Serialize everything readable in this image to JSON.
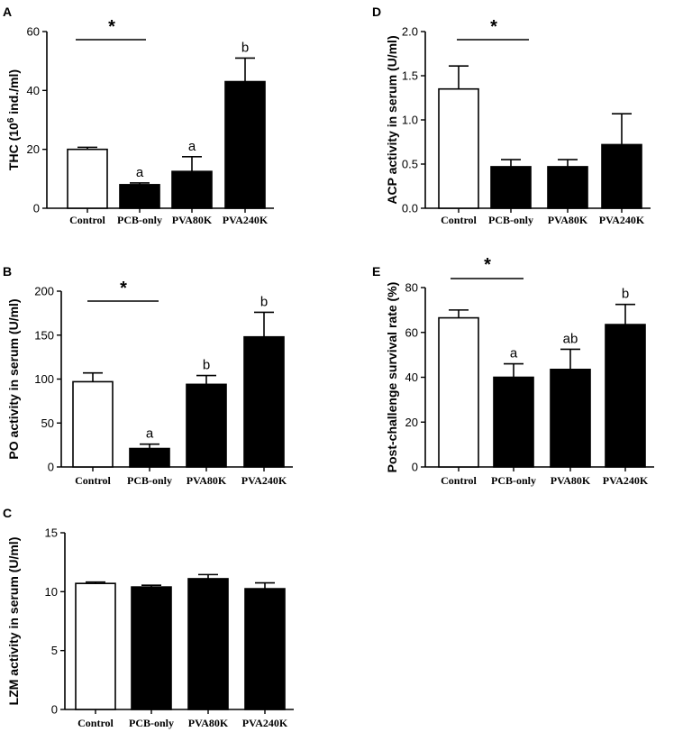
{
  "chart_data": [
    {
      "panel": "A",
      "type": "bar",
      "categories": [
        "Control",
        "PCB-only",
        "PVA80K",
        "PVA240K"
      ],
      "values": [
        20,
        8,
        12.5,
        43
      ],
      "errors": [
        0.7,
        0.6,
        5,
        8
      ],
      "fills": [
        "#ffffff",
        "#000000",
        "#000000",
        "#000000"
      ],
      "sig_labels": [
        "",
        "a",
        "a",
        "b"
      ],
      "ylabel_main": "THC (10",
      "ylabel_sup": "6",
      "ylabel_tail": " ind./ml)",
      "ylim": [
        0,
        60
      ],
      "yticks": [
        "0",
        "20",
        "40",
        "60"
      ],
      "ytick_values": [
        0,
        20,
        40,
        60
      ],
      "star": "*"
    },
    {
      "panel": "B",
      "type": "bar",
      "categories": [
        "Control",
        "PCB-only",
        "PVA80K",
        "PVA240K"
      ],
      "values": [
        97,
        21,
        94,
        148
      ],
      "errors": [
        10,
        5,
        10,
        28
      ],
      "fills": [
        "#ffffff",
        "#000000",
        "#000000",
        "#000000"
      ],
      "sig_labels": [
        "",
        "a",
        "b",
        "b"
      ],
      "ylabel": "PO activity in serum (U/ml)",
      "ylim": [
        0,
        200
      ],
      "yticks": [
        "0",
        "50",
        "100",
        "150",
        "200"
      ],
      "ytick_values": [
        0,
        50,
        100,
        150,
        200
      ],
      "star": "*"
    },
    {
      "panel": "C",
      "type": "bar",
      "categories": [
        "Control",
        "PCB-only",
        "PVA80K",
        "PVA240K"
      ],
      "values": [
        10.7,
        10.4,
        11.1,
        10.25
      ],
      "errors": [
        0.12,
        0.15,
        0.35,
        0.5
      ],
      "fills": [
        "#ffffff",
        "#000000",
        "#000000",
        "#000000"
      ],
      "sig_labels": [
        "",
        "",
        "",
        ""
      ],
      "ylabel": "LZM activity in serum (U/ml)",
      "ylim": [
        0,
        15
      ],
      "yticks": [
        "0",
        "5",
        "10",
        "15"
      ],
      "ytick_values": [
        0,
        5,
        10,
        15
      ],
      "star": ""
    },
    {
      "panel": "D",
      "type": "bar",
      "categories": [
        "Control",
        "PCB-only",
        "PVA80K",
        "PVA240K"
      ],
      "values": [
        1.35,
        0.47,
        0.47,
        0.72
      ],
      "errors": [
        0.26,
        0.08,
        0.08,
        0.35
      ],
      "fills": [
        "#ffffff",
        "#000000",
        "#000000",
        "#000000"
      ],
      "sig_labels": [
        "",
        "",
        "",
        ""
      ],
      "ylabel": "ACP activity in serum (U/ml)",
      "ylim": [
        0,
        2.0
      ],
      "yticks": [
        "0.0",
        "0.5",
        "1.0",
        "1.5",
        "2.0"
      ],
      "ytick_values": [
        0,
        0.5,
        1.0,
        1.5,
        2.0
      ],
      "star": "*"
    },
    {
      "panel": "E",
      "type": "bar",
      "categories": [
        "Control",
        "PCB-only",
        "PVA80K",
        "PVA240K"
      ],
      "values": [
        66.5,
        40,
        43.5,
        63.5
      ],
      "errors": [
        3.5,
        6,
        9,
        9
      ],
      "fills": [
        "#ffffff",
        "#000000",
        "#000000",
        "#000000"
      ],
      "sig_labels": [
        "",
        "a",
        "ab",
        "b"
      ],
      "ylabel": "Post-challenge survival rate (%)",
      "ylim": [
        0,
        80
      ],
      "yticks": [
        "0",
        "20",
        "40",
        "60",
        "80"
      ],
      "ytick_values": [
        0,
        20,
        40,
        60,
        80
      ],
      "star": "*"
    }
  ]
}
